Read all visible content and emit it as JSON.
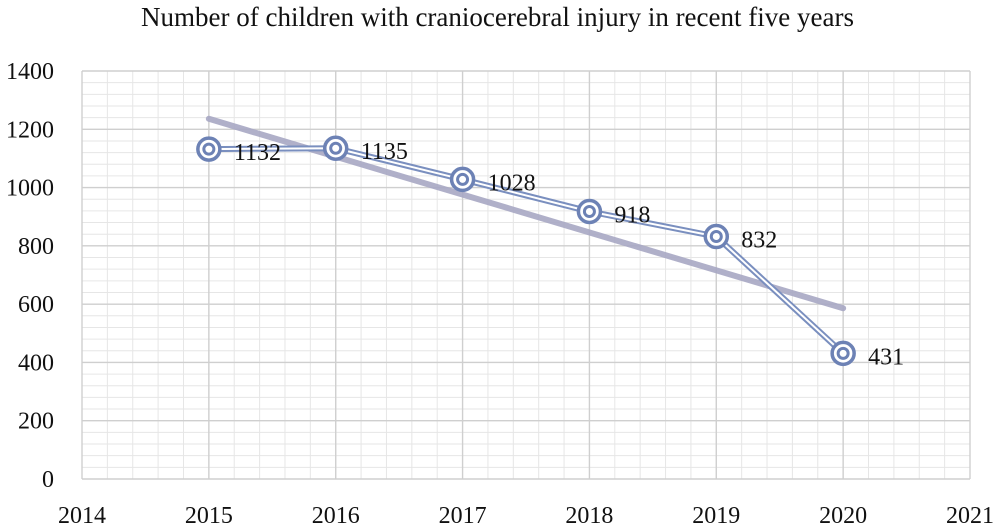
{
  "chart_data": {
    "type": "line",
    "title": "Number of children with craniocerebral injury in recent five years",
    "xlabel": "",
    "ylabel": "",
    "xlim": [
      2014,
      2021
    ],
    "ylim": [
      0,
      1400
    ],
    "x_ticks": [
      2014,
      2015,
      2016,
      2017,
      2018,
      2019,
      2020,
      2021
    ],
    "y_ticks": [
      0,
      200,
      400,
      600,
      800,
      1000,
      1200,
      1400
    ],
    "grid": true,
    "legend": "none",
    "series": [
      {
        "name": "Number of children",
        "x": [
          2015,
          2016,
          2017,
          2018,
          2019,
          2020
        ],
        "values": [
          1132,
          1135,
          1028,
          918,
          832,
          431
        ],
        "data_labels": [
          "1132",
          "1135",
          "1028",
          "918",
          "832",
          "431"
        ],
        "color": "#7a8fbf"
      }
    ],
    "trendline": {
      "type": "linear",
      "x": [
        2015,
        2020
      ],
      "values": [
        1236,
        586
      ],
      "color": "#a8a8c4"
    }
  }
}
